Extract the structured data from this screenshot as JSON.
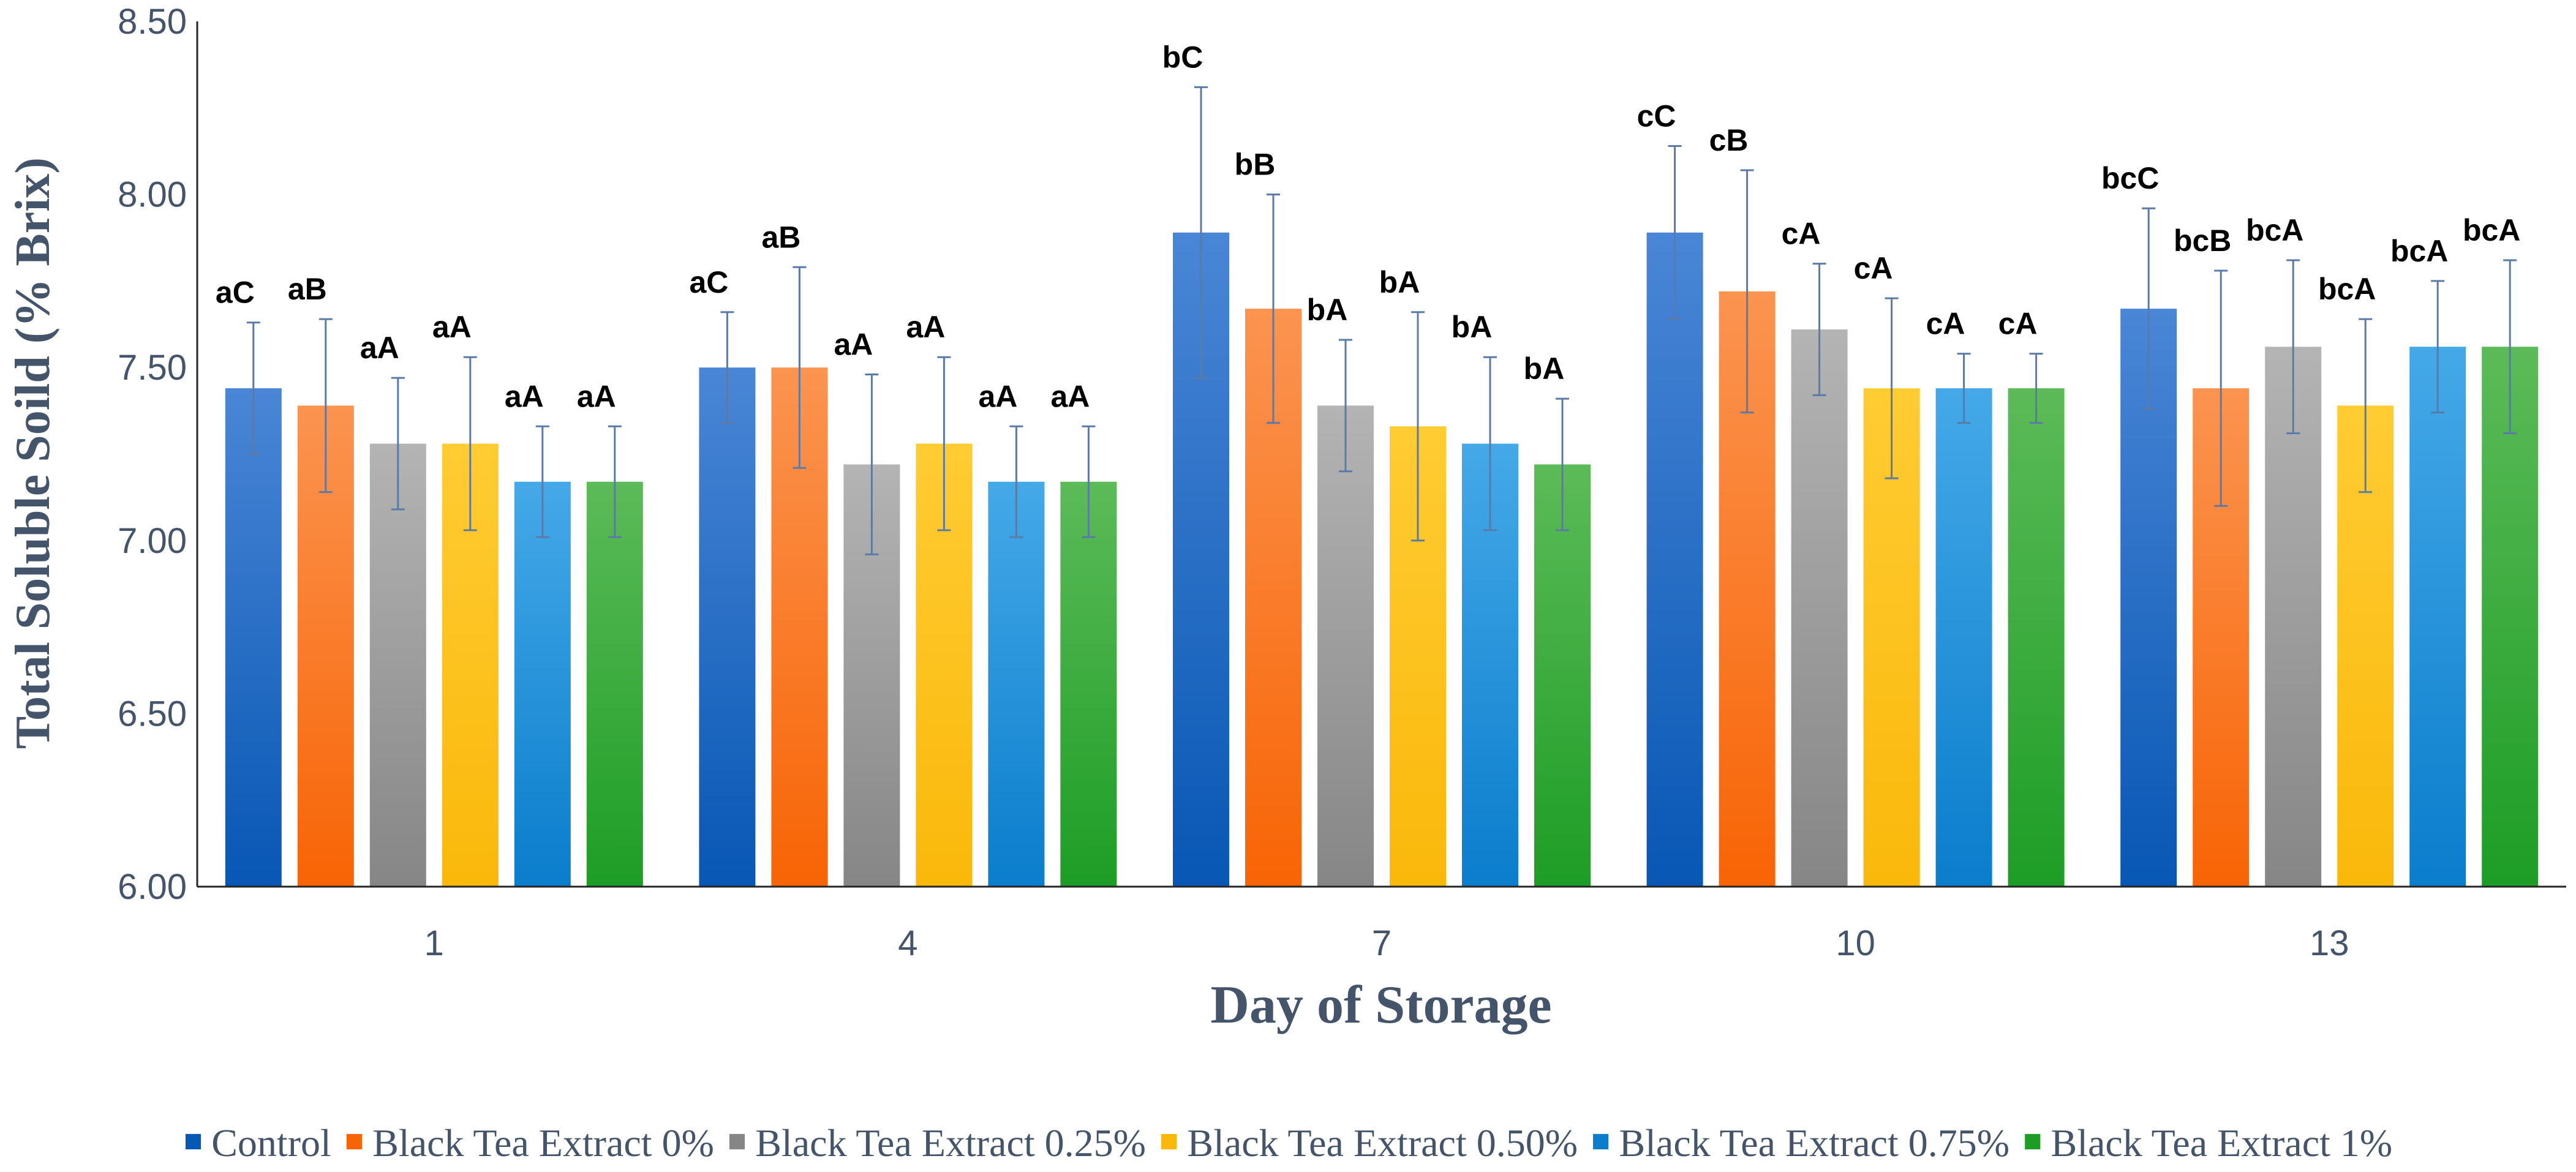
{
  "chart_data": {
    "type": "bar",
    "title": "",
    "xlabel": "Day of Storage",
    "ylabel": "Total Soluble Soild (% Brix)",
    "ylim": [
      6.0,
      8.5
    ],
    "yticks": [
      "6.00",
      "6.50",
      "7.00",
      "7.50",
      "8.00",
      "8.50"
    ],
    "categories": [
      "1",
      "4",
      "7",
      "10",
      "13"
    ],
    "legend_position": "bottom",
    "series": [
      {
        "name": "Control",
        "color_top": "#4a86d6",
        "color_bottom": "#0757b4",
        "values": [
          7.44,
          7.5,
          7.89,
          7.89,
          7.67
        ],
        "errors": [
          0.19,
          0.16,
          0.42,
          0.25,
          0.29
        ],
        "labels": [
          "aC",
          "aC",
          "bC",
          "cC",
          "bcC"
        ]
      },
      {
        "name": "Black Tea Extract 0%",
        "color_top": "#fb9450",
        "color_bottom": "#f86405",
        "values": [
          7.39,
          7.5,
          7.67,
          7.72,
          7.44
        ],
        "errors": [
          0.25,
          0.29,
          0.33,
          0.35,
          0.34
        ],
        "labels": [
          "aB",
          "aB",
          "bB",
          "cB",
          "bcB"
        ]
      },
      {
        "name": "Black Tea Extract 0.25%",
        "color_top": "#b4b4b4",
        "color_bottom": "#868686",
        "values": [
          7.28,
          7.22,
          7.39,
          7.61,
          7.56
        ],
        "errors": [
          0.19,
          0.26,
          0.19,
          0.19,
          0.25
        ],
        "labels": [
          "aA",
          "aA",
          "bA",
          "cA",
          "bcA"
        ]
      },
      {
        "name": "Black Tea Extract 0.50%",
        "color_top": "#ffcc33",
        "color_bottom": "#fab80a",
        "values": [
          7.28,
          7.28,
          7.33,
          7.44,
          7.39
        ],
        "errors": [
          0.25,
          0.25,
          0.33,
          0.26,
          0.25
        ],
        "labels": [
          "aA",
          "aA",
          "bA",
          "cA",
          "bcA"
        ]
      },
      {
        "name": "Black Tea Extract 0.75%",
        "color_top": "#45a9e8",
        "color_bottom": "#0a7dcc",
        "values": [
          7.17,
          7.17,
          7.28,
          7.44,
          7.56
        ],
        "errors": [
          0.16,
          0.16,
          0.25,
          0.1,
          0.19
        ],
        "labels": [
          "aA",
          "aA",
          "bA",
          "cA",
          "bcA"
        ]
      },
      {
        "name": "Black Tea Extract 1%",
        "color_top": "#5cbb58",
        "color_bottom": "#1d9d26",
        "values": [
          7.17,
          7.17,
          7.22,
          7.44,
          7.56
        ],
        "errors": [
          0.16,
          0.16,
          0.19,
          0.1,
          0.25
        ],
        "labels": [
          "aA",
          "aA",
          "bA",
          "cA",
          "bcA"
        ]
      }
    ],
    "error_bar_color": "#5a7ba8",
    "legend_marker": "■"
  }
}
